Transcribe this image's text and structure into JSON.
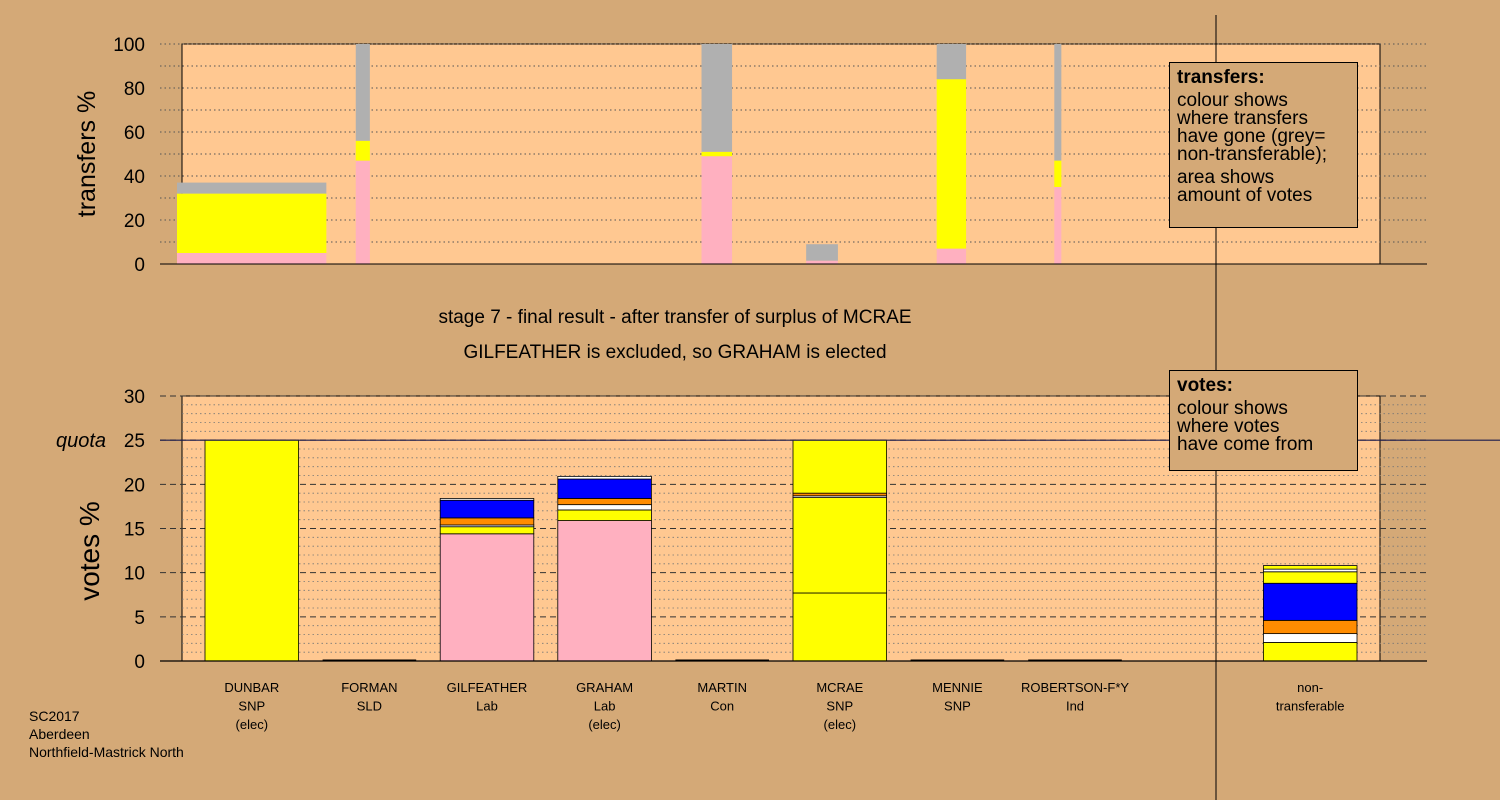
{
  "chart_data": [
    {
      "type": "bar",
      "stacked": true,
      "ylabel": "transfers %",
      "ylim": [
        0,
        100
      ],
      "yticks": [
        0,
        20,
        40,
        60,
        80,
        100
      ],
      "grid": "dotted horizontal",
      "bars": [
        {
          "name": "DUNBAR",
          "x0": 0,
          "x1": 1.27,
          "segments": [
            {
              "color": "#ffb0c0",
              "from": 0,
              "to": 5
            },
            {
              "color": "#ffff00",
              "from": 5,
              "to": 32
            },
            {
              "color": "#b0b0b0",
              "from": 32,
              "to": 37
            }
          ]
        },
        {
          "name": "FORMAN",
          "x0": 1.52,
          "x1": 1.64,
          "segments": [
            {
              "color": "#ffb0c0",
              "from": 0,
              "to": 47
            },
            {
              "color": "#ffff00",
              "from": 47,
              "to": 56
            },
            {
              "color": "#b0b0b0",
              "from": 56,
              "to": 100
            }
          ]
        },
        {
          "name": "MARTIN",
          "x0": 4.46,
          "x1": 4.72,
          "segments": [
            {
              "color": "#ffb0c0",
              "from": 0,
              "to": 49
            },
            {
              "color": "#ffff00",
              "from": 49,
              "to": 51
            },
            {
              "color": "#b0b0b0",
              "from": 51,
              "to": 100
            }
          ]
        },
        {
          "name": "MCRAE",
          "x0": 5.35,
          "x1": 5.62,
          "segments": [
            {
              "color": "#ffb0c0",
              "from": 0,
              "to": 1.5
            },
            {
              "color": "#b0b0b0",
              "from": 1.5,
              "to": 9
            }
          ]
        },
        {
          "name": "MENNIE",
          "x0": 6.46,
          "x1": 6.71,
          "segments": [
            {
              "color": "#ffb0c0",
              "from": 0,
              "to": 7
            },
            {
              "color": "#ffff00",
              "from": 7,
              "to": 84
            },
            {
              "color": "#b0b0b0",
              "from": 84,
              "to": 100
            }
          ]
        },
        {
          "name": "ROBERTSON-F*Y",
          "x0": 7.46,
          "x1": 7.52,
          "segments": [
            {
              "color": "#ffb0c0",
              "from": 0,
              "to": 35
            },
            {
              "color": "#ffff00",
              "from": 35,
              "to": 47
            },
            {
              "color": "#b0b0b0",
              "from": 47,
              "to": 100
            }
          ]
        }
      ]
    },
    {
      "type": "bar",
      "stacked": true,
      "ylabel": "votes %",
      "ylim": [
        0,
        30
      ],
      "yticks": [
        0,
        5,
        10,
        15,
        20,
        25,
        30
      ],
      "quota": 25,
      "quota_label": "quota",
      "grid": "dashed major, dotted minor",
      "categories": [
        {
          "name": "DUNBAR",
          "party": "SNP",
          "status": "(elec)"
        },
        {
          "name": "FORMAN",
          "party": "SLD",
          "status": ""
        },
        {
          "name": "GILFEATHER",
          "party": "Lab",
          "status": ""
        },
        {
          "name": "GRAHAM",
          "party": "Lab",
          "status": "(elec)"
        },
        {
          "name": "MARTIN",
          "party": "Con",
          "status": ""
        },
        {
          "name": "MCRAE",
          "party": "SNP",
          "status": "(elec)"
        },
        {
          "name": "MENNIE",
          "party": "SNP",
          "status": ""
        },
        {
          "name": "ROBERTSON-F*Y",
          "party": "Ind",
          "status": ""
        },
        {
          "name": "",
          "party": "",
          "status": ""
        },
        {
          "name": "non-",
          "party": "transferable",
          "status": ""
        }
      ],
      "stacks": [
        [
          {
            "color": "#ffff00",
            "value": 25
          }
        ],
        [],
        [
          {
            "color": "#ffb0c0",
            "value": 14.4
          },
          {
            "color": "#ffff00",
            "value": 0.8
          },
          {
            "color": "#ffffff",
            "value": 0.2
          },
          {
            "color": "#ff8c00",
            "value": 0.8
          },
          {
            "color": "#0000ff",
            "value": 2.0
          },
          {
            "color": "#ffffff",
            "value": 0.2
          }
        ],
        [
          {
            "color": "#ffb0c0",
            "value": 15.9
          },
          {
            "color": "#ffff00",
            "value": 1.2
          },
          {
            "color": "#ffffff",
            "value": 0.6
          },
          {
            "color": "#ff8c00",
            "value": 0.7
          },
          {
            "color": "#0000ff",
            "value": 2.2
          },
          {
            "color": "#ffffff",
            "value": 0.3
          }
        ],
        [],
        [
          {
            "color": "#ffff00",
            "value": 7.7
          },
          {
            "color": "#ffff00",
            "value": 10.8
          },
          {
            "color": "#ffffff",
            "value": 0.2
          },
          {
            "color": "#ff8c00",
            "value": 0.3
          },
          {
            "color": "#ffff00",
            "value": 6.0
          }
        ],
        [],
        [],
        [],
        [
          {
            "color": "#ffff00",
            "value": 2.1
          },
          {
            "color": "#ffffff",
            "value": 1.0
          },
          {
            "color": "#ff8c00",
            "value": 1.5
          },
          {
            "color": "#0000ff",
            "value": 4.2
          },
          {
            "color": "#ffff00",
            "value": 1.3
          },
          {
            "color": "#ffffff",
            "value": 0.3
          },
          {
            "color": "#ffff00",
            "value": 0.4
          }
        ]
      ]
    }
  ],
  "stage_title": "stage 7 - final result - after transfer of surplus of MCRAE",
  "stage_subtitle": "GILFEATHER is excluded, so GRAHAM is elected",
  "legend_transfers": {
    "heading": "transfers:",
    "lines": [
      "colour shows",
      "where transfers",
      "have gone (grey=",
      "non-transferable);"
    ],
    "lines2": [
      "area shows",
      "amount of votes"
    ]
  },
  "legend_votes": {
    "heading": "votes:",
    "lines": [
      "colour shows",
      "where votes",
      "have come from"
    ]
  },
  "footer": [
    "SC2017",
    "Aberdeen",
    "Northfield-Mastrick North"
  ],
  "colors": {
    "background": "#d4a977",
    "plot_fill": "#ffc891"
  }
}
